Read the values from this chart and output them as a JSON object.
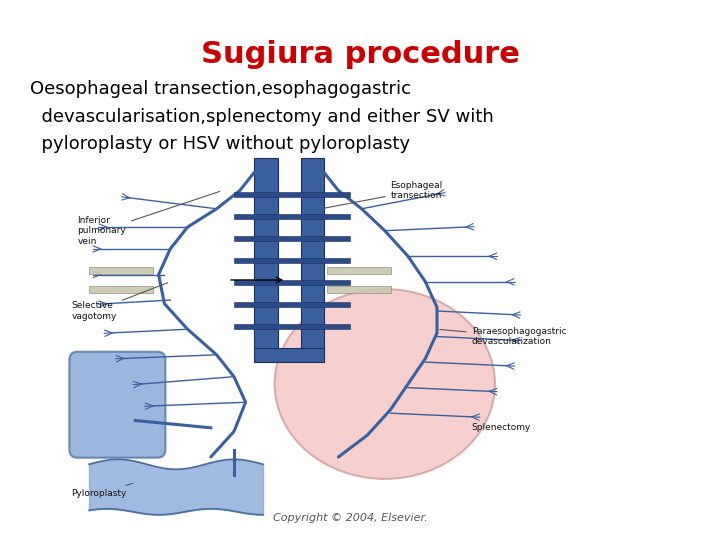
{
  "title": "Sugiura procedure",
  "title_color": "#cc0000",
  "title_fontsize": 22,
  "body_line1": "Oesophageal transection,esophagogastric",
  "body_line2": "  devascularisation,splenectomy and either SV with",
  "body_line3": "  pyloroplasty or HSV without pyloroplasty",
  "body_fontsize": 13,
  "body_color": "#000000",
  "background_color": "#ffffff",
  "copyright_text": "Copyright © 2004, Elsevier.",
  "copyright_fontsize": 8,
  "esoph_color": "#3a5f9f",
  "stomach_face": "#f5c0c0",
  "stomach_edge": "#cc9999",
  "spleen_face": "#7a9fd4",
  "spleen_edge": "#4a6fa0",
  "label_fontsize": 6.5,
  "label_color": "#111111"
}
